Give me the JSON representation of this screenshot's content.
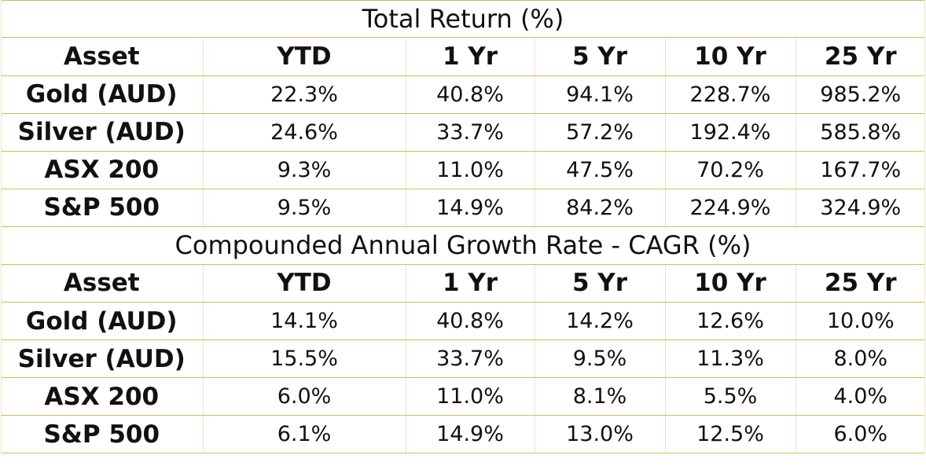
{
  "chart_data": [
    {
      "type": "table",
      "title": "Total Return (%)",
      "columns": [
        "Asset",
        "YTD",
        "1 Yr",
        "5 Yr",
        "10 Yr",
        "25 Yr"
      ],
      "rows": [
        [
          "Gold (AUD)",
          "22.3%",
          "40.8%",
          "94.1%",
          "228.7%",
          "985.2%"
        ],
        [
          "Silver (AUD)",
          "24.6%",
          "33.7%",
          "57.2%",
          "192.4%",
          "585.8%"
        ],
        [
          "ASX 200",
          "9.3%",
          "11.0%",
          "47.5%",
          "70.2%",
          "167.7%"
        ],
        [
          "S&P 500",
          "9.5%",
          "14.9%",
          "84.2%",
          "224.9%",
          "324.9%"
        ]
      ]
    },
    {
      "type": "table",
      "title": "Compounded Annual Growth Rate - CAGR (%)",
      "columns": [
        "Asset",
        "YTD",
        "1 Yr",
        "5 Yr",
        "10 Yr",
        "25 Yr"
      ],
      "rows": [
        [
          "Gold (AUD)",
          "14.1%",
          "40.8%",
          "14.2%",
          "12.6%",
          "10.0%"
        ],
        [
          "Silver (AUD)",
          "15.5%",
          "33.7%",
          "9.5%",
          "11.3%",
          "8.0%"
        ],
        [
          "ASX 200",
          "6.0%",
          "11.0%",
          "8.1%",
          "5.5%",
          "4.0%"
        ],
        [
          "S&P 500",
          "6.1%",
          "14.9%",
          "13.0%",
          "12.5%",
          "6.0%"
        ]
      ]
    }
  ],
  "colors": {
    "border_gold": "#d9b95a",
    "text": "#111111",
    "background": "#ffffff"
  }
}
